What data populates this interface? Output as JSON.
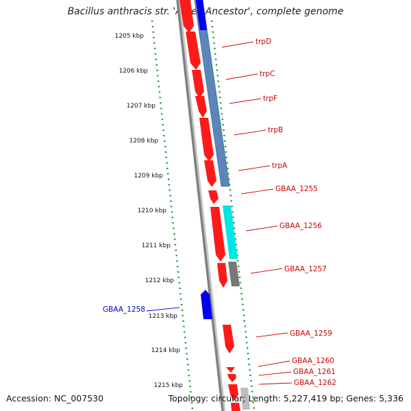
{
  "title": "Bacillus anthracis str. 'Ames Ancestor', complete genome",
  "footer": {
    "accession": "Accession: NC_007530",
    "topology": "Topology: circular; Length: 5,227,419 bp; Genes: 5,336"
  },
  "colors": {
    "forward_cds": "#ff1a1a",
    "reverse_cds": "#0000ee",
    "backbone": "#808080",
    "tick_marks": "#1a8f1a",
    "label_red": "#cc0000",
    "label_blue": "#0000cc",
    "operon_blue": "#5b86b8",
    "cyan_feature": "#00e5e5",
    "gray_feature": "#777777"
  },
  "kbp_labels": [
    "1205 kbp",
    "1206 kbp",
    "1207 kbp",
    "1208 kbp",
    "1209 kbp",
    "1210 kbp",
    "1211 kbp",
    "1212 kbp",
    "1213 kbp",
    "1214 kbp",
    "1215 kbp"
  ],
  "gene_labels": [
    {
      "name": "trpD",
      "strand": "forward"
    },
    {
      "name": "trpC",
      "strand": "forward"
    },
    {
      "name": "trpF",
      "strand": "forward"
    },
    {
      "name": "trpB",
      "strand": "forward"
    },
    {
      "name": "trpA",
      "strand": "forward"
    },
    {
      "name": "GBAA_1255",
      "strand": "forward"
    },
    {
      "name": "GBAA_1256",
      "strand": "forward"
    },
    {
      "name": "GBAA_1257",
      "strand": "forward"
    },
    {
      "name": "GBAA_1258",
      "strand": "reverse"
    },
    {
      "name": "GBAA_1259",
      "strand": "forward"
    },
    {
      "name": "GBAA_1260",
      "strand": "forward"
    },
    {
      "name": "GBAA_1261",
      "strand": "forward"
    },
    {
      "name": "GBAA_1262",
      "strand": "forward"
    }
  ]
}
